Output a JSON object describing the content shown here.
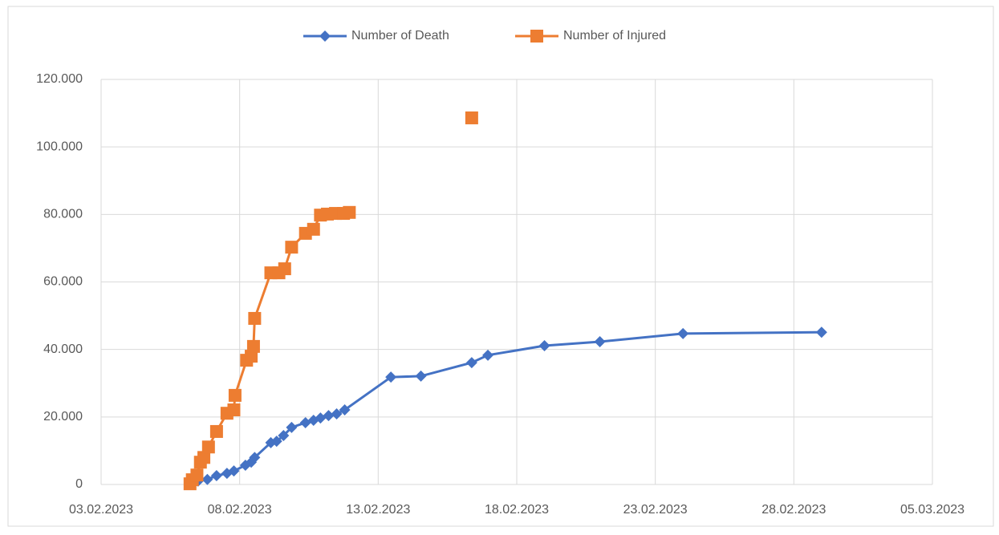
{
  "chart_data": {
    "type": "scatter",
    "xlim": [
      "2023-02-03T00:00Z",
      "2023-03-05T00:00Z"
    ],
    "xticks": [
      {
        "value": "2023-02-03T00:00Z",
        "label": "03.02.2023"
      },
      {
        "value": "2023-02-08T00:00Z",
        "label": "08.02.2023"
      },
      {
        "value": "2023-02-13T00:00Z",
        "label": "13.02.2023"
      },
      {
        "value": "2023-02-18T00:00Z",
        "label": "18.02.2023"
      },
      {
        "value": "2023-02-23T00:00Z",
        "label": "23.02.2023"
      },
      {
        "value": "2023-02-28T00:00Z",
        "label": "28.02.2023"
      },
      {
        "value": "2023-03-05T00:00Z",
        "label": "05.03.2023"
      }
    ],
    "ylim": [
      0,
      120000
    ],
    "yticks": [
      0,
      {
        "value": 20000,
        "label": "20.000"
      },
      {
        "value": 40000,
        "label": "40.000"
      },
      {
        "value": 60000,
        "label": "60.000"
      },
      {
        "value": 80000,
        "label": "80.000"
      },
      {
        "value": 100000,
        "label": "100.000"
      },
      {
        "value": 120000,
        "label": "120.000"
      }
    ],
    "grid": true,
    "legend": "top",
    "series": [
      {
        "name": "Number of Death",
        "color": "#4472c4",
        "marker": "diamond",
        "x": [
          "2023-02-06T06:00Z",
          "2023-02-06T12:00Z",
          "2023-02-06T20:00Z",
          "2023-02-07T04:00Z",
          "2023-02-07T13:00Z",
          "2023-02-07T19:00Z",
          "2023-02-08T05:00Z",
          "2023-02-08T10:00Z",
          "2023-02-08T13:00Z",
          "2023-02-09T03:00Z",
          "2023-02-09T08:00Z",
          "2023-02-09T14:00Z",
          "2023-02-09T21:00Z",
          "2023-02-10T09:00Z",
          "2023-02-10T16:00Z",
          "2023-02-10T22:00Z",
          "2023-02-11T05:00Z",
          "2023-02-11T12:00Z",
          "2023-02-11T19:00Z",
          "2023-02-13T11:00Z",
          "2023-02-14T13:00Z",
          "2023-02-16T09:00Z",
          "2023-02-16T23:00Z",
          "2023-02-19T00:00Z",
          "2023-02-21T00:00Z",
          "2023-02-24T00:00Z",
          "2023-03-01T00:00Z"
        ],
        "values": [
          200,
          1000,
          1500,
          2600,
          3300,
          4000,
          5700,
          6600,
          8000,
          12400,
          12800,
          14500,
          16900,
          18300,
          19000,
          19700,
          20400,
          20900,
          22100,
          31800,
          32100,
          36100,
          38300,
          41100,
          42300,
          44700,
          45100
        ]
      },
      {
        "name": "Number of Injured",
        "color": "#ed7d31",
        "marker": "square",
        "x": [
          "2023-02-06T05:00Z",
          "2023-02-06T07:00Z",
          "2023-02-06T11:00Z",
          "2023-02-06T14:00Z",
          "2023-02-06T17:00Z",
          "2023-02-06T21:00Z",
          "2023-02-07T04:00Z",
          "2023-02-07T13:00Z",
          "2023-02-07T19:00Z",
          "2023-02-07T20:00Z",
          "2023-02-08T06:00Z",
          "2023-02-08T10:00Z",
          "2023-02-08T12:00Z",
          "2023-02-08T13:00Z",
          "2023-02-09T03:00Z",
          "2023-02-09T10:00Z",
          "2023-02-09T15:00Z",
          "2023-02-09T21:00Z",
          "2023-02-10T09:00Z",
          "2023-02-10T16:00Z",
          "2023-02-10T22:00Z",
          "2023-02-11T04:00Z",
          "2023-02-11T11:00Z",
          "2023-02-11T18:00Z",
          "2023-02-11T23:00Z",
          "2023-02-14T00:00Z",
          "2023-02-16T09:00Z"
        ],
        "values": [
          200,
          1400,
          2800,
          6600,
          8000,
          11100,
          15700,
          21100,
          22100,
          26400,
          36800,
          38000,
          40900,
          49200,
          62700,
          62700,
          63900,
          70300,
          74400,
          75600,
          79800,
          80100,
          80300,
          80300,
          80600,
          null,
          108600
        ]
      }
    ]
  }
}
